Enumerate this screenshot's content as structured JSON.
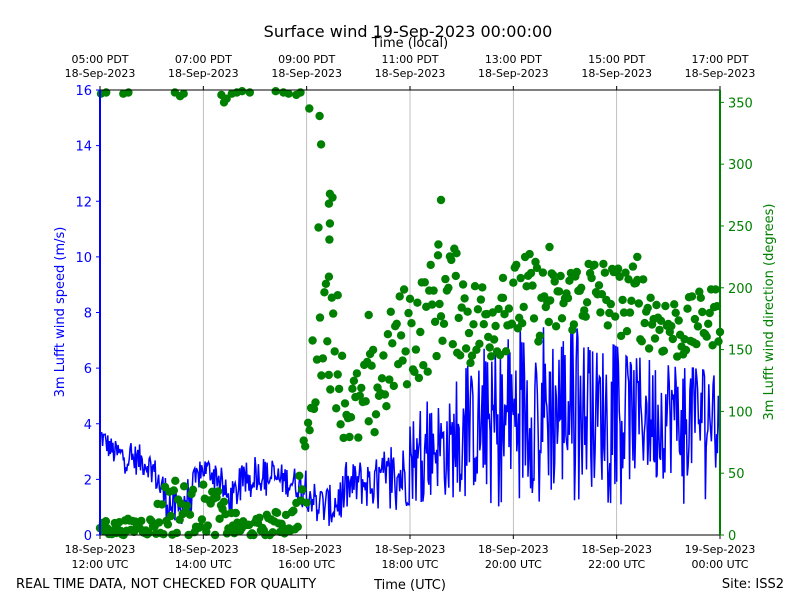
{
  "chart_data": {
    "type": "line+scatter",
    "title": "Surface wind 19-Sep-2023 00:00:00",
    "top_axis_label": "Time (local)",
    "xlabel": "Time (UTC)",
    "x_unit": "hours since 18-Sep-2023 12:00 UTC",
    "xlim": [
      0,
      12
    ],
    "x_ticks_bottom": [
      {
        "x": 0,
        "line1": "18-Sep-2023",
        "line2": "12:00 UTC"
      },
      {
        "x": 2,
        "line1": "18-Sep-2023",
        "line2": "14:00 UTC"
      },
      {
        "x": 4,
        "line1": "18-Sep-2023",
        "line2": "16:00 UTC"
      },
      {
        "x": 6,
        "line1": "18-Sep-2023",
        "line2": "18:00 UTC"
      },
      {
        "x": 8,
        "line1": "18-Sep-2023",
        "line2": "20:00 UTC"
      },
      {
        "x": 10,
        "line1": "18-Sep-2023",
        "line2": "22:00 UTC"
      },
      {
        "x": 12,
        "line1": "19-Sep-2023",
        "line2": "00:00 UTC"
      }
    ],
    "x_ticks_top": [
      {
        "x": 0,
        "line1": "05:00 PDT",
        "line2": "18-Sep-2023"
      },
      {
        "x": 2,
        "line1": "07:00 PDT",
        "line2": "18-Sep-2023"
      },
      {
        "x": 4,
        "line1": "09:00 PDT",
        "line2": "18-Sep-2023"
      },
      {
        "x": 6,
        "line1": "11:00 PDT",
        "line2": "18-Sep-2023"
      },
      {
        "x": 8,
        "line1": "13:00 PDT",
        "line2": "18-Sep-2023"
      },
      {
        "x": 10,
        "line1": "15:00 PDT",
        "line2": "18-Sep-2023"
      },
      {
        "x": 12,
        "line1": "17:00 PDT",
        "line2": "18-Sep-2023"
      }
    ],
    "y_left": {
      "label": "3m Lufft wind speed (m/s)",
      "lim": [
        0,
        16
      ],
      "ticks": [
        0,
        2,
        4,
        6,
        8,
        10,
        12,
        14,
        16
      ],
      "color": "#0000ff"
    },
    "y_right": {
      "label": "3m Lufft wind direction (degrees)",
      "lim": [
        0,
        360
      ],
      "ticks": [
        0,
        50,
        100,
        150,
        200,
        250,
        300,
        350
      ],
      "color": "#008000"
    },
    "series": [
      {
        "name": "3m Lufft wind speed",
        "axis": "left",
        "style": "line",
        "color": "#0000ff",
        "x": [
          0,
          0.25,
          0.5,
          0.75,
          1,
          1.25,
          1.5,
          1.75,
          2,
          2.25,
          2.5,
          2.75,
          3,
          3.25,
          3.5,
          3.75,
          4,
          4.25,
          4.5,
          4.75,
          5,
          5.25,
          5.5,
          5.75,
          6,
          6.25,
          6.5,
          6.75,
          7,
          7.25,
          7.5,
          7.75,
          8,
          8.25,
          8.5,
          8.75,
          9,
          9.25,
          9.5,
          9.75,
          10,
          10.25,
          10.5,
          10.75,
          11,
          11.25,
          11.5,
          11.75,
          12
        ],
        "values": [
          3.6,
          3.0,
          2.8,
          2.7,
          2.5,
          1.4,
          0.8,
          1.6,
          2.4,
          2.2,
          1.2,
          1.8,
          2.2,
          2.1,
          2.0,
          1.9,
          1.6,
          1.1,
          1.0,
          1.6,
          1.9,
          1.8,
          2.0,
          2.1,
          2.2,
          2.8,
          3.3,
          3.0,
          3.5,
          3.8,
          4.0,
          3.6,
          4.2,
          4.5,
          4.8,
          4.4,
          4.6,
          4.8,
          4.2,
          4.4,
          4.3,
          4.2,
          4.5,
          4.1,
          4.4,
          4.2,
          4.3,
          4.5,
          3.9
        ],
        "min": [
          3.0,
          2.3,
          2.2,
          2.0,
          1.9,
          0.6,
          0.2,
          0.8,
          1.8,
          1.6,
          0.7,
          1.1,
          1.5,
          1.4,
          1.3,
          1.2,
          0.9,
          0.4,
          0.3,
          0.8,
          1.0,
          0.9,
          1.0,
          0.9,
          1.1,
          1.2,
          1.6,
          1.0,
          1.4,
          1.4,
          1.2,
          1.0,
          0.8,
          0.9,
          1.2,
          1.0,
          1.1,
          1.3,
          1.0,
          1.2,
          1.1,
          1.1,
          1.3,
          1.0,
          1.2,
          1.1,
          1.2,
          1.3,
          1.3
        ],
        "max": [
          3.9,
          3.4,
          3.3,
          3.3,
          2.9,
          2.6,
          1.9,
          2.2,
          2.8,
          2.7,
          2.0,
          2.5,
          2.8,
          2.7,
          2.6,
          2.5,
          2.3,
          1.9,
          2.1,
          2.6,
          2.9,
          2.9,
          3.0,
          3.3,
          3.9,
          4.6,
          5.2,
          5.1,
          5.8,
          6.4,
          6.8,
          6.5,
          7.4,
          7.8,
          8.3,
          7.9,
          7.8,
          7.4,
          6.6,
          6.9,
          6.8,
          6.3,
          6.4,
          6.2,
          6.1,
          6.0,
          6.0,
          5.9,
          5.6
        ]
      },
      {
        "name": "3m Lufft wind direction",
        "axis": "right",
        "style": "scatter",
        "color": "#008000",
        "x": [
          0,
          0.25,
          0.5,
          0.75,
          1,
          1.25,
          1.5,
          1.75,
          2,
          2.25,
          2.5,
          2.75,
          3,
          3.25,
          3.5,
          3.75,
          4,
          4.25,
          4.5,
          4.75,
          5,
          5.25,
          5.5,
          5.75,
          6,
          6.25,
          6.5,
          6.75,
          7,
          7.25,
          7.5,
          7.75,
          8,
          8.25,
          8.5,
          8.75,
          9,
          9.25,
          9.5,
          9.75,
          10,
          10.25,
          10.5,
          10.75,
          11,
          11.25,
          11.5,
          11.75,
          12
        ],
        "values": [
          8,
          5,
          6,
          8,
          7,
          20,
          25,
          18,
          22,
          18,
          10,
          6,
          5,
          8,
          10,
          12,
          55,
          200,
          155,
          105,
          100,
          110,
          130,
          155,
          165,
          170,
          185,
          195,
          185,
          170,
          175,
          185,
          185,
          195,
          190,
          185,
          190,
          195,
          200,
          195,
          190,
          190,
          185,
          175,
          170,
          165,
          170,
          175,
          180
        ],
        "spread": [
          8,
          6,
          7,
          7,
          8,
          25,
          25,
          20,
          20,
          20,
          12,
          8,
          8,
          10,
          10,
          12,
          40,
          70,
          40,
          35,
          35,
          40,
          40,
          40,
          45,
          45,
          45,
          40,
          45,
          40,
          40,
          40,
          35,
          35,
          35,
          30,
          30,
          30,
          30,
          30,
          30,
          30,
          30,
          30,
          30,
          25,
          25,
          25,
          25
        ],
        "high_cluster": [
          {
            "x": 0.02,
            "y": 357
          },
          {
            "x": 0.12,
            "y": 358
          },
          {
            "x": 0.45,
            "y": 357
          },
          {
            "x": 0.55,
            "y": 358
          },
          {
            "x": 1.45,
            "y": 358
          },
          {
            "x": 1.55,
            "y": 355
          },
          {
            "x": 1.62,
            "y": 357
          },
          {
            "x": 2.35,
            "y": 356
          },
          {
            "x": 2.4,
            "y": 350
          },
          {
            "x": 2.45,
            "y": 353
          },
          {
            "x": 2.55,
            "y": 357
          },
          {
            "x": 2.65,
            "y": 358
          },
          {
            "x": 2.75,
            "y": 359
          },
          {
            "x": 2.9,
            "y": 358
          },
          {
            "x": 3.4,
            "y": 359
          },
          {
            "x": 3.55,
            "y": 358
          },
          {
            "x": 3.65,
            "y": 357
          },
          {
            "x": 3.8,
            "y": 356
          },
          {
            "x": 3.88,
            "y": 358
          },
          {
            "x": 4.05,
            "y": 345
          },
          {
            "x": 4.25,
            "y": 339
          },
          {
            "x": 4.28,
            "y": 316
          },
          {
            "x": 4.45,
            "y": 276
          },
          {
            "x": 4.5,
            "y": 273
          },
          {
            "x": 4.43,
            "y": 268
          },
          {
            "x": 4.45,
            "y": 252
          },
          {
            "x": 4.44,
            "y": 239
          },
          {
            "x": 4.43,
            "y": 209
          },
          {
            "x": 4.6,
            "y": 194
          },
          {
            "x": 5.2,
            "y": 178
          },
          {
            "x": 6.6,
            "y": 271
          },
          {
            "x": 6.55,
            "y": 235
          },
          {
            "x": 6.9,
            "y": 228
          },
          {
            "x": 7.8,
            "y": 208
          },
          {
            "x": 8.7,
            "y": 233
          },
          {
            "x": 10.4,
            "y": 225
          }
        ]
      }
    ]
  },
  "footer": {
    "left_note": "REAL TIME DATA, NOT CHECKED FOR QUALITY",
    "site": "Site: ISS2"
  }
}
